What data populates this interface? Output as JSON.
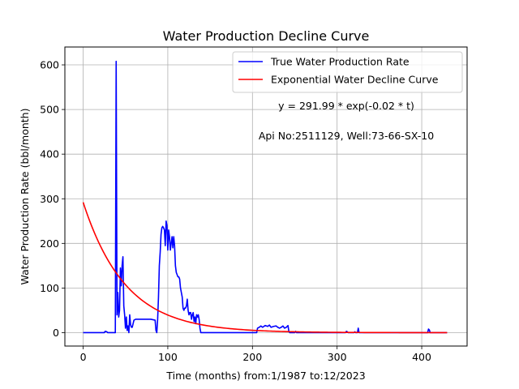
{
  "chart_data": {
    "type": "line",
    "title": "Water Production Decline Curve",
    "xlabel": "Time (months) from:1/1987 to:12/2023",
    "ylabel": "Water Production Rate (bbl/month)",
    "xlim": [
      -21.6,
      453.6
    ],
    "ylim": [
      -30,
      640
    ],
    "x_ticks": [
      0,
      100,
      200,
      300,
      400
    ],
    "y_ticks": [
      0,
      100,
      200,
      300,
      400,
      500,
      600
    ],
    "grid": true,
    "legend_position": "top-right",
    "annotations": [
      {
        "text": "y = 291.99 * exp(-0.02 * t)",
        "x": 308,
        "y": 500
      },
      {
        "text": "Api No:2511129, Well:73-66-SX-10",
        "x": 308,
        "y": 435
      }
    ],
    "series": [
      {
        "name": "True Water Production Rate",
        "color": "#0000ff",
        "points": [
          [
            0,
            0
          ],
          [
            25,
            0
          ],
          [
            26,
            3
          ],
          [
            28,
            2
          ],
          [
            29,
            0
          ],
          [
            38,
            0
          ],
          [
            39,
            608
          ],
          [
            40,
            40
          ],
          [
            41,
            90
          ],
          [
            42,
            35
          ],
          [
            43,
            50
          ],
          [
            44,
            145
          ],
          [
            45,
            105
          ],
          [
            46,
            150
          ],
          [
            47,
            170
          ],
          [
            48,
            60
          ],
          [
            49,
            40
          ],
          [
            50,
            10
          ],
          [
            51,
            35
          ],
          [
            52,
            5
          ],
          [
            53,
            15
          ],
          [
            54,
            0
          ],
          [
            55,
            40
          ],
          [
            56,
            18
          ],
          [
            57,
            12
          ],
          [
            58,
            12
          ],
          [
            60,
            28
          ],
          [
            62,
            30
          ],
          [
            66,
            30
          ],
          [
            70,
            30
          ],
          [
            75,
            30
          ],
          [
            80,
            30
          ],
          [
            85,
            28
          ],
          [
            86,
            5
          ],
          [
            87,
            0
          ],
          [
            88,
            30
          ],
          [
            89,
            80
          ],
          [
            90,
            150
          ],
          [
            91,
            180
          ],
          [
            92,
            220
          ],
          [
            93,
            235
          ],
          [
            94,
            238
          ],
          [
            95,
            235
          ],
          [
            96,
            230
          ],
          [
            97,
            195
          ],
          [
            98,
            250
          ],
          [
            99,
            240
          ],
          [
            100,
            185
          ],
          [
            101,
            230
          ],
          [
            102,
            215
          ],
          [
            103,
            185
          ],
          [
            104,
            200
          ],
          [
            105,
            215
          ],
          [
            106,
            190
          ],
          [
            107,
            215
          ],
          [
            108,
            195
          ],
          [
            109,
            150
          ],
          [
            110,
            135
          ],
          [
            111,
            130
          ],
          [
            112,
            125
          ],
          [
            113,
            125
          ],
          [
            114,
            120
          ],
          [
            115,
            100
          ],
          [
            116,
            90
          ],
          [
            117,
            80
          ],
          [
            118,
            55
          ],
          [
            119,
            50
          ],
          [
            120,
            55
          ],
          [
            121,
            55
          ],
          [
            122,
            60
          ],
          [
            123,
            75
          ],
          [
            124,
            50
          ],
          [
            125,
            40
          ],
          [
            126,
            45
          ],
          [
            127,
            45
          ],
          [
            128,
            30
          ],
          [
            129,
            40
          ],
          [
            130,
            45
          ],
          [
            131,
            25
          ],
          [
            132,
            35
          ],
          [
            133,
            20
          ],
          [
            134,
            40
          ],
          [
            135,
            35
          ],
          [
            136,
            40
          ],
          [
            137,
            30
          ],
          [
            138,
            10
          ],
          [
            139,
            0
          ],
          [
            205,
            0
          ],
          [
            206,
            10
          ],
          [
            208,
            12
          ],
          [
            210,
            15
          ],
          [
            212,
            12
          ],
          [
            215,
            16
          ],
          [
            218,
            14
          ],
          [
            220,
            17
          ],
          [
            222,
            12
          ],
          [
            225,
            14
          ],
          [
            228,
            15
          ],
          [
            230,
            12
          ],
          [
            232,
            10
          ],
          [
            234,
            12
          ],
          [
            236,
            15
          ],
          [
            238,
            10
          ],
          [
            240,
            12
          ],
          [
            242,
            16
          ],
          [
            243,
            3
          ],
          [
            244,
            0
          ],
          [
            250,
            0
          ],
          [
            251,
            3
          ],
          [
            252,
            0
          ],
          [
            310,
            0
          ],
          [
            311,
            3
          ],
          [
            312,
            2
          ],
          [
            313,
            0
          ],
          [
            320,
            0
          ],
          [
            321,
            2
          ],
          [
            322,
            0
          ],
          [
            324,
            0
          ],
          [
            325,
            10
          ],
          [
            326,
            0
          ],
          [
            407,
            0
          ],
          [
            408,
            8
          ],
          [
            409,
            6
          ],
          [
            410,
            0
          ],
          [
            430,
            0
          ]
        ]
      },
      {
        "name": "Exponential Water Decline Curve",
        "color": "#ff0000",
        "a": 291.99,
        "b": -0.02,
        "x_range": [
          0,
          430
        ]
      }
    ]
  }
}
